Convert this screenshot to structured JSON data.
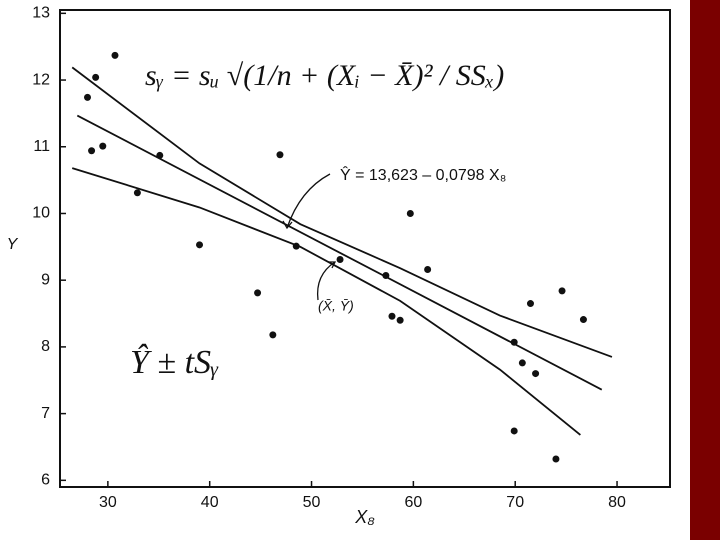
{
  "chart_data": {
    "type": "scatter",
    "xlabel": "X₈",
    "ylabel": "Y",
    "xlim": [
      25.3,
      85.2
    ],
    "ylim": [
      5.9,
      13.05
    ],
    "xticks": [
      30,
      40,
      50,
      60,
      70,
      80
    ],
    "yticks": [
      6,
      7,
      8,
      9,
      10,
      11,
      12,
      13
    ],
    "series": [
      {
        "style": "points",
        "color": "#111111",
        "x": [
          28.0,
          28.4,
          28.8,
          29.5,
          30.7,
          32.9,
          35.1,
          39.0,
          44.7,
          46.2,
          46.9,
          48.5,
          52.8,
          57.3,
          57.9,
          58.7,
          59.7,
          61.4,
          69.9,
          69.9,
          70.7,
          71.5,
          72.0,
          74.0,
          74.6,
          76.7
        ],
        "values": [
          11.74,
          10.94,
          12.04,
          11.01,
          12.37,
          10.31,
          10.87,
          9.53,
          8.81,
          8.18,
          10.88,
          9.51,
          9.31,
          9.07,
          8.46,
          8.4,
          10.0,
          9.16,
          8.07,
          6.74,
          7.76,
          8.65,
          7.6,
          6.32,
          8.84,
          8.41
        ]
      },
      {
        "style": "line",
        "color": "#111111",
        "x": [
          27,
          78.5
        ],
        "values": [
          11.468,
          7.359
        ]
      },
      {
        "style": "line",
        "color": "#111111",
        "x": [
          26.5,
          39,
          48.9,
          58.7,
          68.5,
          79.5
        ],
        "values": [
          12.19,
          10.75,
          9.84,
          9.18,
          8.47,
          7.85
        ]
      },
      {
        "style": "line",
        "color": "#111111",
        "x": [
          26.5,
          39,
          48.9,
          58.7,
          68.5,
          76.4
        ],
        "values": [
          10.68,
          10.09,
          9.5,
          8.69,
          7.66,
          6.68
        ]
      }
    ],
    "annotations": [
      "sᵧ = sᵤ √(1/n + (Xᵢ − X̄)² / SSₓ)",
      "Ŷ = 13,623 – 0,0798 X₈",
      "(X̄, Ȳ)",
      "Ŷ ± tSᵧ"
    ]
  }
}
